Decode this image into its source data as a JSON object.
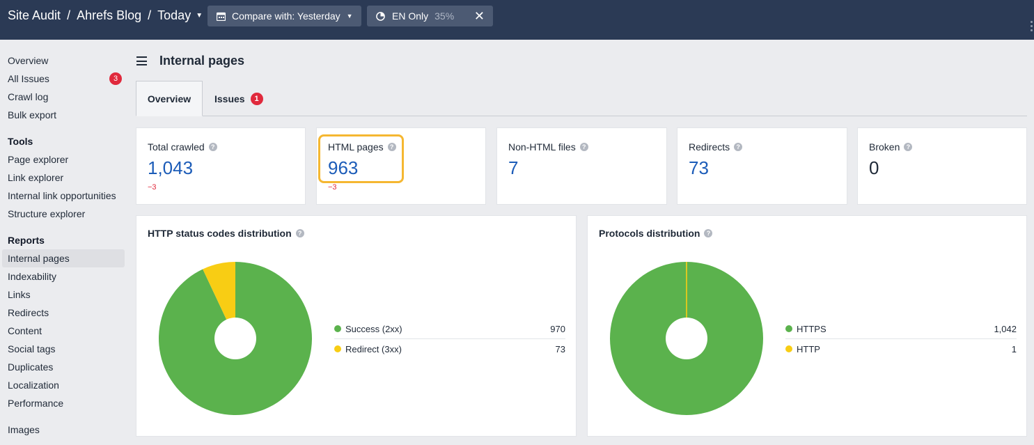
{
  "header": {
    "crumbs": [
      "Site Audit",
      "Ahrefs Blog",
      "Today"
    ],
    "compare_label": "Compare with: Yesterday",
    "lang_label": "EN Only",
    "lang_percent": "35%"
  },
  "sidebar": {
    "top_items": [
      {
        "label": "Overview"
      },
      {
        "label": "All Issues",
        "badge": "3"
      },
      {
        "label": "Crawl log"
      },
      {
        "label": "Bulk export"
      }
    ],
    "tools_heading": "Tools",
    "tools_items": [
      "Page explorer",
      "Link explorer",
      "Internal link opportunities",
      "Structure explorer"
    ],
    "reports_heading": "Reports",
    "reports_items": [
      "Internal pages",
      "Indexability",
      "Links",
      "Redirects",
      "Content",
      "Social tags",
      "Duplicates",
      "Localization",
      "Performance"
    ],
    "extra_items": [
      "Images"
    ],
    "active_item": "Internal pages"
  },
  "main": {
    "title": "Internal pages",
    "tabs": [
      {
        "label": "Overview",
        "active": true
      },
      {
        "label": "Issues",
        "badge": "1"
      }
    ]
  },
  "stats": [
    {
      "label": "Total crawled",
      "value": "1,043",
      "delta": "−3"
    },
    {
      "label": "HTML pages",
      "value": "963",
      "delta": "−3",
      "highlighted": true
    },
    {
      "label": "Non-HTML files",
      "value": "7",
      "delta": ""
    },
    {
      "label": "Redirects",
      "value": "73",
      "delta": ""
    },
    {
      "label": "Broken",
      "value": "0",
      "delta": ""
    }
  ],
  "chart_data": [
    {
      "type": "pie",
      "title": "HTTP status codes distribution",
      "categories": [
        "Success (2xx)",
        "Redirect (3xx)"
      ],
      "values": [
        970,
        73
      ],
      "value_labels": [
        "970",
        "73"
      ],
      "colors": [
        "#5bb24d",
        "#f8cd14"
      ],
      "legend": "right"
    },
    {
      "type": "pie",
      "title": "Protocols distribution",
      "categories": [
        "HTTPS",
        "HTTP"
      ],
      "values": [
        1042,
        1
      ],
      "value_labels": [
        "1,042",
        "1"
      ],
      "colors": [
        "#5bb24d",
        "#f8cd14"
      ],
      "legend": "right"
    }
  ],
  "colors": {
    "topbar": "#2b3a55",
    "accent_blue": "#1c5cb8",
    "negative": "#e0293c",
    "highlight": "#f5b731"
  },
  "icons": [
    "calendar-icon",
    "pie-icon",
    "close-icon",
    "help-icon",
    "menu-icon"
  ]
}
